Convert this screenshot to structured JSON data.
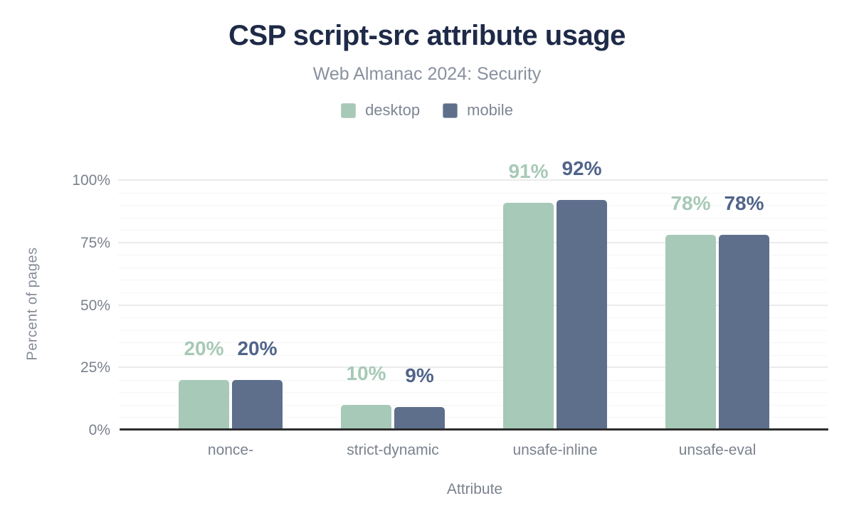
{
  "header": {
    "title": "CSP script-src attribute usage",
    "subtitle": "Web Almanac 2024: Security"
  },
  "axes": {
    "ylabel": "Percent of pages",
    "xlabel": "Attribute"
  },
  "chart_data": {
    "type": "bar",
    "title": "CSP script-src attribute usage",
    "subtitle": "Web Almanac 2024: Security",
    "categories": [
      "nonce-",
      "strict-dynamic",
      "unsafe-inline",
      "unsafe-eval"
    ],
    "series": [
      {
        "name": "desktop",
        "color": "#a7c9b7",
        "label_color": "#a7c9b7",
        "values": [
          20,
          10,
          91,
          78
        ],
        "value_labels": [
          "20%",
          "10%",
          "91%",
          "78%"
        ]
      },
      {
        "name": "mobile",
        "color": "#5e6f8c",
        "label_color": "#51648a",
        "values": [
          20,
          9,
          92,
          78
        ],
        "value_labels": [
          "20%",
          "9%",
          "92%",
          "78%"
        ]
      }
    ],
    "xlabel": "Attribute",
    "ylabel": "Percent of pages",
    "ylim": [
      0,
      100
    ],
    "yticks": [
      {
        "value": 0,
        "label": "0%"
      },
      {
        "value": 25,
        "label": "25%"
      },
      {
        "value": 50,
        "label": "50%"
      },
      {
        "value": 75,
        "label": "75%"
      },
      {
        "value": 100,
        "label": "100%"
      }
    ],
    "grid": {
      "minor_step_pct": 5,
      "major_step_pct": 25,
      "gridlines_on": true
    },
    "legend_position": "top",
    "title_color": "#1e2a47",
    "axis_text_color": "#7b828c",
    "baseline_color": "#2d2d2d"
  }
}
